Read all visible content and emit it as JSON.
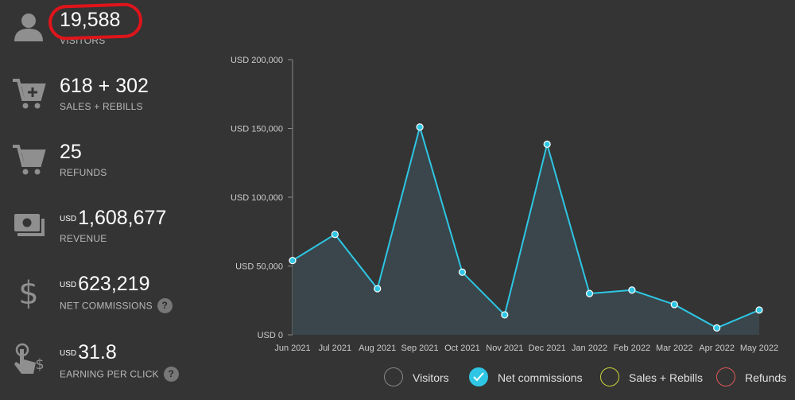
{
  "stats": [
    {
      "icon": "user-icon",
      "value": "19,588",
      "currency": "",
      "label": "VISITORS",
      "help": false
    },
    {
      "icon": "cart-add-icon",
      "value": "618 + 302",
      "currency": "",
      "label": "SALES + REBILLS",
      "help": false
    },
    {
      "icon": "cart-icon",
      "value": "25",
      "currency": "",
      "label": "REFUNDS",
      "help": false
    },
    {
      "icon": "money-icon",
      "value": "1,608,677",
      "currency": "USD",
      "label": "REVENUE",
      "help": false
    },
    {
      "icon": "dollar-icon",
      "value": "623,219",
      "currency": "USD",
      "label": "NET COMMISSIONS",
      "help": true
    },
    {
      "icon": "tap-dollar-icon",
      "value": "31.8",
      "currency": "USD",
      "label": "EARNING PER CLICK",
      "help": true
    }
  ],
  "help_label": "?",
  "chart_data": {
    "type": "area",
    "categories": [
      "Jun 2021",
      "Jul 2021",
      "Aug 2021",
      "Sep 2021",
      "Oct 2021",
      "Nov 2021",
      "Dec 2021",
      "Jan 2022",
      "Feb 2022",
      "Mar 2022",
      "Apr 2022",
      "May 2022"
    ],
    "series": [
      {
        "name": "Net commissions",
        "values": [
          54000,
          73000,
          33500,
          151000,
          45500,
          14500,
          138500,
          30000,
          32500,
          22000,
          5000,
          18000
        ]
      }
    ],
    "yticks": [
      0,
      50000,
      100000,
      150000,
      200000
    ],
    "ytick_labels": [
      "USD 0",
      "USD 50,000",
      "USD 100,000",
      "USD 150,000",
      "USD 200,000"
    ],
    "ylim": [
      0,
      200000
    ],
    "grid": false,
    "line_color": "#2ec6e4",
    "fill_color": "#3a464b",
    "legend_position": "bottom"
  },
  "legend": [
    {
      "label": "Visitors",
      "color": "#888888",
      "checked": false
    },
    {
      "label": "Net commissions",
      "color": "#2ec6e4",
      "checked": true
    },
    {
      "label": "Sales + Rebills",
      "color": "#c9d43a",
      "checked": false
    },
    {
      "label": "Refunds",
      "color": "#e05858",
      "checked": false
    }
  ]
}
